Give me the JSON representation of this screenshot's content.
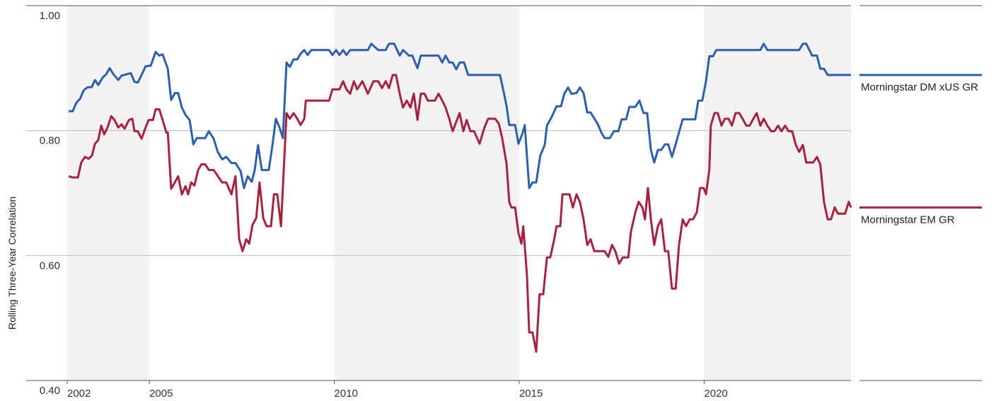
{
  "chart_data": {
    "type": "line",
    "y_label": "Rolling Three-Year Correlation",
    "xlim": [
      2002.78,
      2023.97
    ],
    "xticks": [
      {
        "value": 2002.78,
        "label": "2002"
      },
      2005,
      2010,
      2015,
      2020
    ],
    "ylim": [
      0.4,
      1.0
    ],
    "yticks": [
      {
        "value": 0.4,
        "label": "0.40"
      },
      {
        "value": 0.6,
        "label": "0.60"
      },
      {
        "value": 0.8,
        "label": "0.80"
      },
      {
        "value": 1.0,
        "label": "1.00"
      }
    ],
    "grid": true,
    "shaded_ranges": [
      [
        2002.78,
        2005
      ],
      [
        2010,
        2015
      ],
      [
        2020,
        2023.97
      ]
    ],
    "legend": "right",
    "series": [
      {
        "name": "Morningstar DM xUS GR",
        "color": "#2d5fac",
        "x": [
          2002.82,
          2002.93,
          2003.03,
          2003.13,
          2003.22,
          2003.32,
          2003.45,
          2003.53,
          2003.62,
          2003.74,
          2003.83,
          2003.93,
          2004.02,
          2004.16,
          2004.25,
          2004.5,
          2004.6,
          2004.69,
          2004.79,
          2004.9,
          2005.04,
          2005.17,
          2005.27,
          2005.36,
          2005.5,
          2005.59,
          2005.69,
          2005.78,
          2005.88,
          2005.98,
          2006.09,
          2006.19,
          2006.28,
          2006.51,
          2006.61,
          2006.74,
          2006.85,
          2006.97,
          2007.08,
          2007.22,
          2007.33,
          2007.47,
          2007.56,
          2007.66,
          2007.77,
          2007.85,
          2007.94,
          2008.04,
          2008.23,
          2008.33,
          2008.42,
          2008.52,
          2008.61,
          2008.71,
          2008.8,
          2008.9,
          2009.0,
          2009.09,
          2009.19,
          2009.28,
          2009.38,
          2009.57,
          2009.86,
          2009.95,
          2010.05,
          2010.14,
          2010.24,
          2010.33,
          2010.43,
          2010.91,
          2011.0,
          2011.19,
          2011.39,
          2011.48,
          2011.62,
          2011.77,
          2011.86,
          2012.02,
          2012.11,
          2012.25,
          2012.34,
          2012.82,
          2012.92,
          2013.01,
          2013.11,
          2013.2,
          2013.3,
          2013.39,
          2013.51,
          2013.62,
          2014.48,
          2014.58,
          2014.66,
          2014.73,
          2014.89,
          2014.98,
          2015.08,
          2015.15,
          2015.27,
          2015.36,
          2015.46,
          2015.57,
          2015.69,
          2015.75,
          2015.88,
          2016.01,
          2016.13,
          2016.22,
          2016.32,
          2016.41,
          2016.55,
          2016.64,
          2016.74,
          2016.84,
          2016.93,
          2017.12,
          2017.22,
          2017.31,
          2017.45,
          2017.56,
          2017.68,
          2017.77,
          2017.89,
          2017.98,
          2018.14,
          2018.25,
          2018.36,
          2018.46,
          2018.56,
          2018.65,
          2018.75,
          2018.84,
          2018.94,
          2019.03,
          2019.13,
          2019.23,
          2019.42,
          2019.76,
          2019.84,
          2019.95,
          2020.05,
          2020.14,
          2020.24,
          2020.33,
          2021.52,
          2021.61,
          2021.71,
          2022.57,
          2022.67,
          2022.76,
          2022.92,
          2023.05,
          2023.14,
          2023.24,
          2023.34,
          2023.97
        ],
        "values": [
          0.831,
          0.831,
          0.845,
          0.851,
          0.864,
          0.869,
          0.87,
          0.881,
          0.873,
          0.885,
          0.89,
          0.9,
          0.891,
          0.881,
          0.888,
          0.892,
          0.878,
          0.877,
          0.889,
          0.903,
          0.904,
          0.926,
          0.92,
          0.922,
          0.899,
          0.849,
          0.86,
          0.86,
          0.837,
          0.825,
          0.817,
          0.778,
          0.788,
          0.788,
          0.799,
          0.787,
          0.766,
          0.754,
          0.758,
          0.748,
          0.748,
          0.735,
          0.708,
          0.727,
          0.718,
          0.737,
          0.777,
          0.737,
          0.737,
          0.777,
          0.819,
          0.805,
          0.788,
          0.909,
          0.902,
          0.914,
          0.914,
          0.923,
          0.929,
          0.921,
          0.929,
          0.929,
          0.929,
          0.921,
          0.929,
          0.921,
          0.929,
          0.921,
          0.929,
          0.929,
          0.939,
          0.929,
          0.929,
          0.939,
          0.939,
          0.92,
          0.929,
          0.92,
          0.92,
          0.9,
          0.92,
          0.92,
          0.909,
          0.92,
          0.909,
          0.909,
          0.898,
          0.909,
          0.909,
          0.889,
          0.889,
          0.862,
          0.839,
          0.809,
          0.809,
          0.779,
          0.794,
          0.809,
          0.708,
          0.717,
          0.717,
          0.76,
          0.777,
          0.808,
          0.822,
          0.839,
          0.839,
          0.859,
          0.869,
          0.859,
          0.86,
          0.869,
          0.86,
          0.829,
          0.829,
          0.811,
          0.797,
          0.788,
          0.788,
          0.799,
          0.799,
          0.818,
          0.818,
          0.838,
          0.838,
          0.848,
          0.828,
          0.828,
          0.769,
          0.749,
          0.769,
          0.769,
          0.778,
          0.778,
          0.758,
          0.778,
          0.818,
          0.818,
          0.848,
          0.848,
          0.879,
          0.919,
          0.919,
          0.929,
          0.929,
          0.939,
          0.929,
          0.929,
          0.939,
          0.939,
          0.92,
          0.92,
          0.899,
          0.899,
          0.889,
          0.889
        ]
      },
      {
        "name": "Morningstar EM GR",
        "color": "#a8213d",
        "x": [
          2002.82,
          2002.93,
          2003.07,
          2003.16,
          2003.26,
          2003.36,
          2003.45,
          2003.53,
          2003.62,
          2003.7,
          2003.78,
          2003.87,
          2003.97,
          2004.06,
          2004.16,
          2004.25,
          2004.33,
          2004.45,
          2004.54,
          2004.6,
          2004.69,
          2004.79,
          2004.9,
          2004.98,
          2005.1,
          2005.17,
          2005.27,
          2005.36,
          2005.46,
          2005.5,
          2005.59,
          2005.69,
          2005.78,
          2005.88,
          2005.98,
          2006.05,
          2006.13,
          2006.22,
          2006.32,
          2006.41,
          2006.51,
          2006.61,
          2006.74,
          2006.97,
          2007.08,
          2007.22,
          2007.33,
          2007.43,
          2007.52,
          2007.62,
          2007.7,
          2007.79,
          2007.89,
          2007.98,
          2008.08,
          2008.17,
          2008.29,
          2008.37,
          2008.46,
          2008.56,
          2008.71,
          2008.8,
          2008.9,
          2009.0,
          2009.09,
          2009.19,
          2009.23,
          2009.86,
          2009.95,
          2010.14,
          2010.24,
          2010.33,
          2010.43,
          2010.53,
          2010.62,
          2010.76,
          2010.91,
          2011.06,
          2011.19,
          2011.29,
          2011.39,
          2011.48,
          2011.58,
          2011.67,
          2011.77,
          2011.86,
          2011.96,
          2012.06,
          2012.15,
          2012.25,
          2012.34,
          2012.44,
          2012.53,
          2012.72,
          2012.82,
          2012.92,
          2013.01,
          2013.11,
          2013.2,
          2013.39,
          2013.49,
          2013.58,
          2013.68,
          2013.78,
          2013.93,
          2014.06,
          2014.16,
          2014.35,
          2014.45,
          2014.54,
          2014.66,
          2014.73,
          2014.79,
          2014.89,
          2014.98,
          2015.06,
          2015.11,
          2015.21,
          2015.27,
          2015.36,
          2015.46,
          2015.55,
          2015.65,
          2015.75,
          2015.84,
          2015.94,
          2016.01,
          2016.11,
          2016.17,
          2016.36,
          2016.45,
          2016.55,
          2016.64,
          2016.74,
          2016.84,
          2016.93,
          2017.03,
          2017.31,
          2017.41,
          2017.51,
          2017.6,
          2017.7,
          2017.8,
          2017.95,
          2018.02,
          2018.14,
          2018.23,
          2018.33,
          2018.4,
          2018.48,
          2018.56,
          2018.65,
          2018.75,
          2018.84,
          2018.94,
          2019.03,
          2019.13,
          2019.23,
          2019.32,
          2019.42,
          2019.51,
          2019.61,
          2019.7,
          2019.8,
          2019.89,
          2019.99,
          2020.05,
          2020.14,
          2020.18,
          2020.28,
          2020.37,
          2020.47,
          2020.56,
          2020.66,
          2020.75,
          2020.85,
          2020.95,
          2021.04,
          2021.14,
          2021.23,
          2021.33,
          2021.42,
          2021.52,
          2021.61,
          2021.71,
          2021.81,
          2021.9,
          2022.0,
          2022.09,
          2022.19,
          2022.28,
          2022.38,
          2022.48,
          2022.57,
          2022.67,
          2022.76,
          2022.86,
          2022.95,
          2023.05,
          2023.14,
          2023.24,
          2023.34,
          2023.43,
          2023.53,
          2023.62,
          2023.81,
          2023.91,
          2023.97
        ],
        "values": [
          0.727,
          0.725,
          0.725,
          0.749,
          0.758,
          0.755,
          0.76,
          0.779,
          0.785,
          0.808,
          0.794,
          0.805,
          0.823,
          0.817,
          0.805,
          0.81,
          0.803,
          0.817,
          0.819,
          0.799,
          0.799,
          0.787,
          0.805,
          0.817,
          0.817,
          0.834,
          0.834,
          0.817,
          0.797,
          0.797,
          0.707,
          0.717,
          0.727,
          0.698,
          0.711,
          0.698,
          0.717,
          0.712,
          0.737,
          0.746,
          0.746,
          0.737,
          0.737,
          0.717,
          0.717,
          0.698,
          0.727,
          0.626,
          0.607,
          0.626,
          0.619,
          0.649,
          0.66,
          0.717,
          0.66,
          0.647,
          0.647,
          0.698,
          0.698,
          0.647,
          0.828,
          0.819,
          0.828,
          0.819,
          0.809,
          0.819,
          0.848,
          0.848,
          0.866,
          0.866,
          0.879,
          0.866,
          0.859,
          0.879,
          0.866,
          0.879,
          0.859,
          0.879,
          0.879,
          0.868,
          0.879,
          0.868,
          0.889,
          0.889,
          0.859,
          0.837,
          0.848,
          0.837,
          0.859,
          0.817,
          0.859,
          0.859,
          0.848,
          0.848,
          0.859,
          0.848,
          0.837,
          0.819,
          0.799,
          0.828,
          0.799,
          0.817,
          0.799,
          0.799,
          0.779,
          0.805,
          0.819,
          0.819,
          0.811,
          0.788,
          0.746,
          0.686,
          0.677,
          0.677,
          0.636,
          0.619,
          0.647,
          0.568,
          0.477,
          0.477,
          0.446,
          0.538,
          0.538,
          0.597,
          0.597,
          0.624,
          0.647,
          0.647,
          0.698,
          0.698,
          0.677,
          0.698,
          0.686,
          0.658,
          0.617,
          0.626,
          0.607,
          0.607,
          0.598,
          0.617,
          0.607,
          0.587,
          0.597,
          0.597,
          0.638,
          0.669,
          0.686,
          0.677,
          0.658,
          0.708,
          0.658,
          0.617,
          0.647,
          0.658,
          0.607,
          0.607,
          0.547,
          0.547,
          0.617,
          0.658,
          0.647,
          0.658,
          0.658,
          0.669,
          0.708,
          0.708,
          0.698,
          0.737,
          0.808,
          0.828,
          0.828,
          0.808,
          0.819,
          0.819,
          0.808,
          0.828,
          0.828,
          0.819,
          0.808,
          0.808,
          0.819,
          0.828,
          0.808,
          0.819,
          0.808,
          0.799,
          0.799,
          0.808,
          0.799,
          0.808,
          0.799,
          0.799,
          0.777,
          0.766,
          0.777,
          0.749,
          0.749,
          0.749,
          0.758,
          0.746,
          0.686,
          0.658,
          0.658,
          0.677,
          0.667,
          0.667,
          0.686,
          0.677
        ]
      }
    ]
  }
}
